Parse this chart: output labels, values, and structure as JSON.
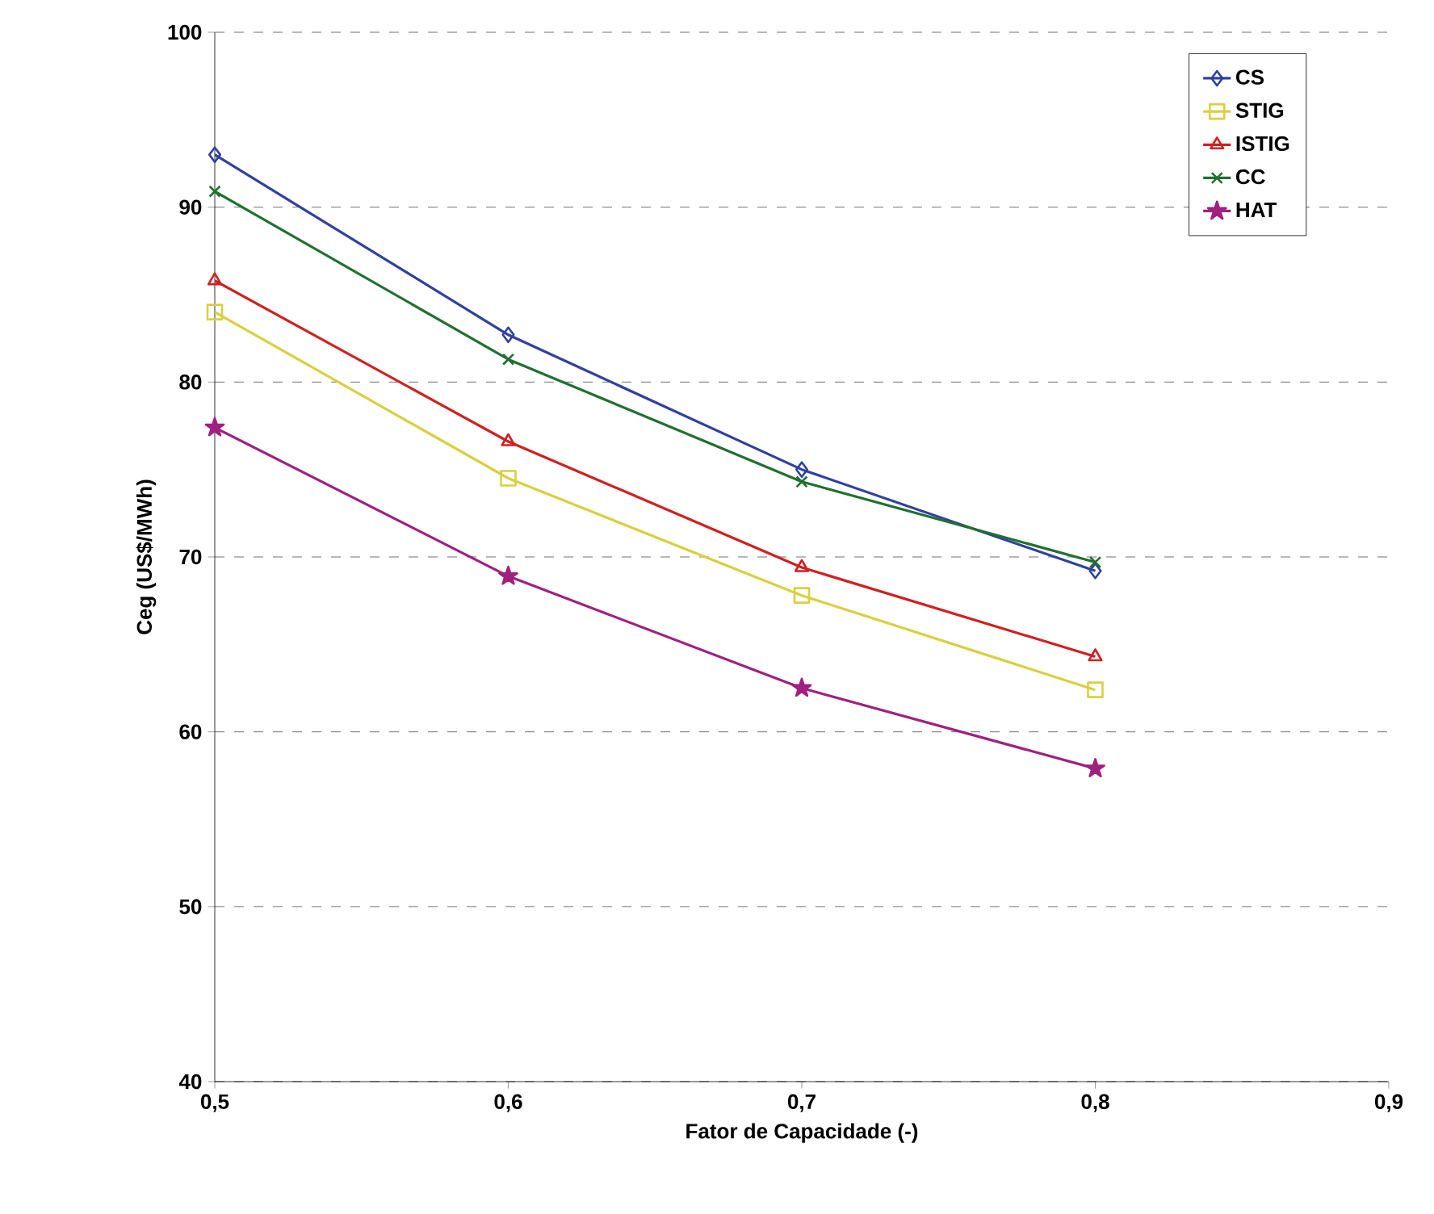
{
  "chart_data": {
    "type": "line",
    "xlabel": "Fator de Capacidade (-)",
    "ylabel": "Ceg (US$/MWh)",
    "x": [
      0.5,
      0.6,
      0.7,
      0.8
    ],
    "series": [
      {
        "name": "CS",
        "color": "#3040a0",
        "marker": "diamond",
        "values": [
          93.0,
          82.7,
          75.0,
          69.2
        ]
      },
      {
        "name": "STIG",
        "color": "#d8d040",
        "marker": "square",
        "values": [
          84.0,
          74.5,
          67.8,
          62.4
        ]
      },
      {
        "name": "ISTIG",
        "color": "#d02020",
        "marker": "triangle",
        "values": [
          85.8,
          76.6,
          69.4,
          64.3
        ]
      },
      {
        "name": "CC",
        "color": "#207030",
        "marker": "cross",
        "values": [
          90.9,
          81.3,
          74.3,
          69.7
        ]
      },
      {
        "name": "HAT",
        "color": "#a02080",
        "marker": "star",
        "values": [
          77.4,
          68.9,
          62.5,
          57.9
        ]
      }
    ],
    "xlim": [
      0.5,
      0.9
    ],
    "ylim": [
      40,
      100
    ],
    "xticks": [
      {
        "value": 0.5,
        "label": "0,5"
      },
      {
        "value": 0.6,
        "label": "0,6"
      },
      {
        "value": 0.7,
        "label": "0,7"
      },
      {
        "value": 0.8,
        "label": "0,8"
      },
      {
        "value": 0.9,
        "label": "0,9"
      }
    ],
    "yticks": [
      40,
      50,
      60,
      70,
      80,
      90,
      100
    ],
    "grid": "y",
    "legend": "top right",
    "line_style": "solid"
  }
}
